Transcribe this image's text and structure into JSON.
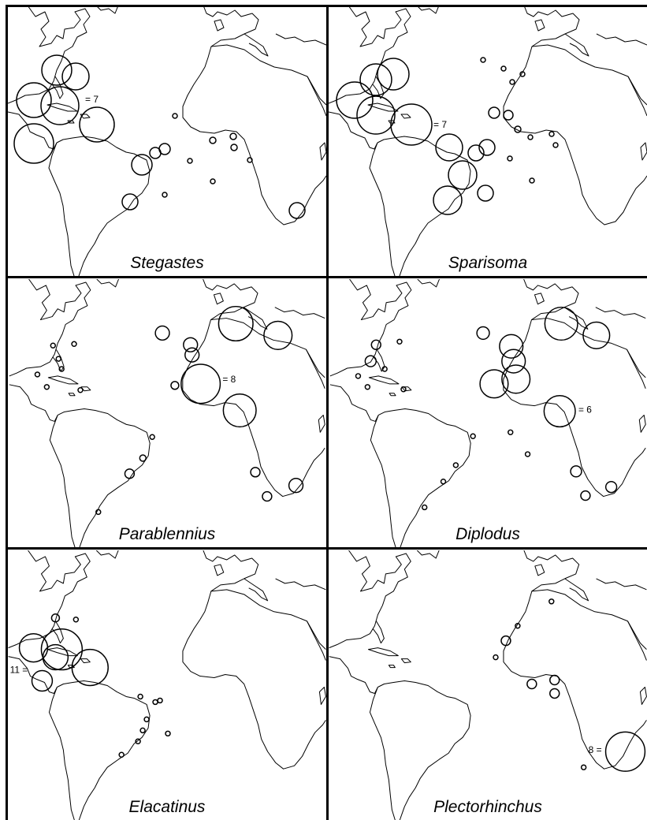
{
  "figure": {
    "colors": {
      "background": "#ffffff",
      "coast": "#000000",
      "circle": "#000000"
    },
    "panels": [
      {
        "genus": "Stegastes",
        "scale_label": "= 7",
        "scale_value": 7
      },
      {
        "genus": "Sparisoma",
        "scale_label": "= 7",
        "scale_value": 7
      },
      {
        "genus": "Parablennius",
        "scale_label": "= 8",
        "scale_value": 8
      },
      {
        "genus": "Diplodus",
        "scale_label": "= 6",
        "scale_value": 6
      },
      {
        "genus": "Elacatinus",
        "scale_label": "11 =",
        "scale_value": 11
      },
      {
        "genus": "Plectorhinchus",
        "scale_label": "8 =",
        "scale_value": 8
      }
    ]
  }
}
